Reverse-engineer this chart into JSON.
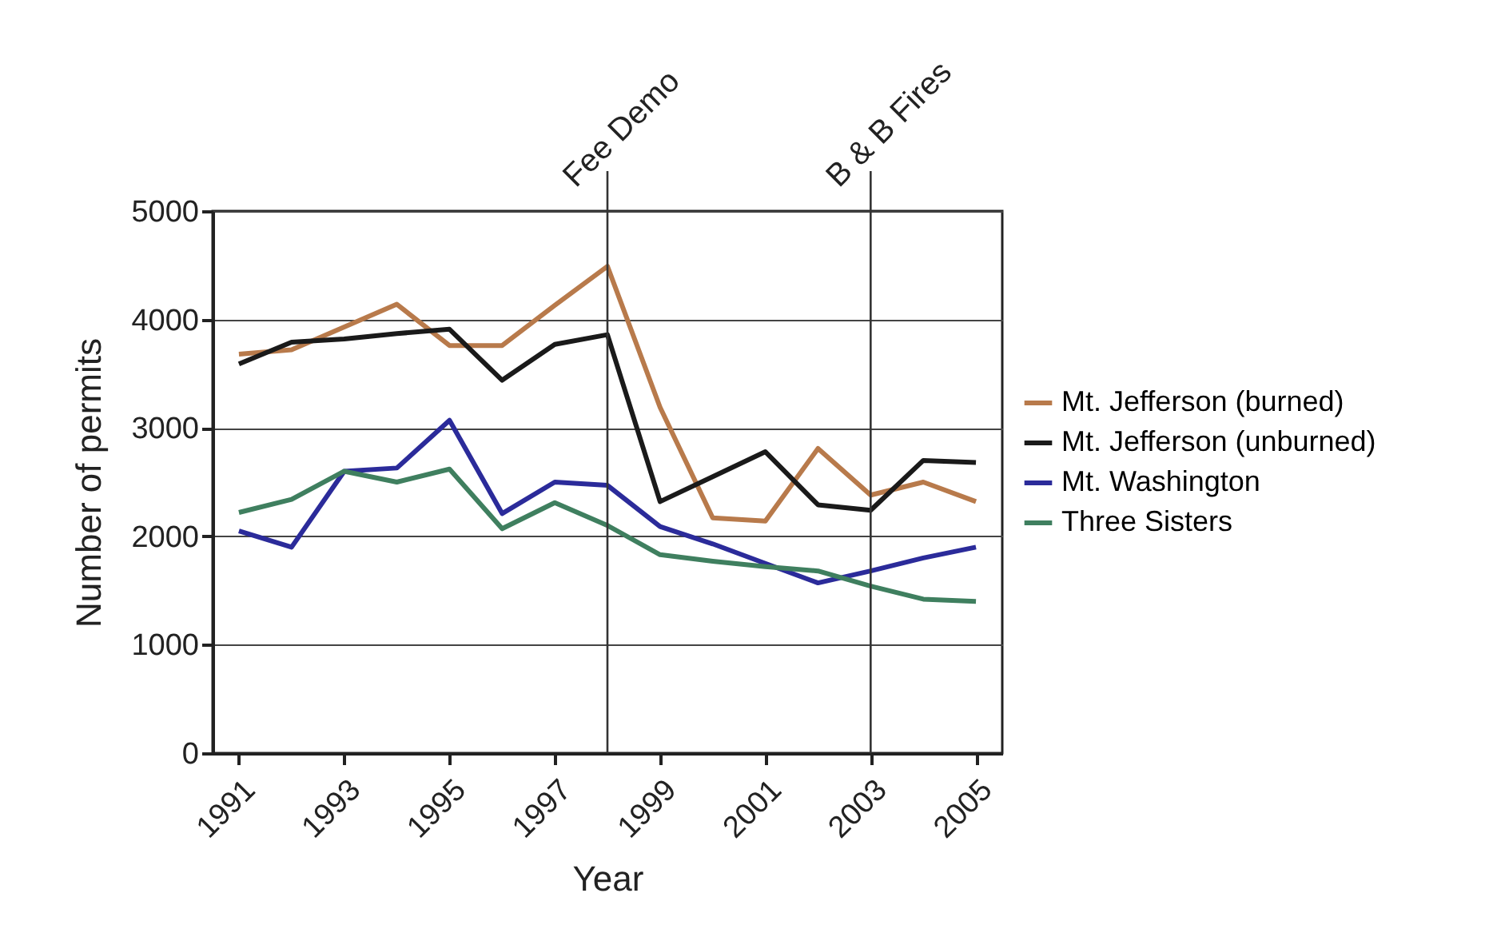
{
  "chart_data": {
    "type": "line",
    "xlabel": "Year",
    "ylabel": "Number of permits",
    "x": [
      1991,
      1992,
      1993,
      1994,
      1995,
      1996,
      1997,
      1998,
      1999,
      2000,
      2001,
      2002,
      2003,
      2004,
      2005
    ],
    "xlim": [
      1990.5,
      2005.5
    ],
    "xticks": [
      1991,
      1993,
      1995,
      1997,
      1999,
      2001,
      2003,
      2005
    ],
    "ylim": [
      0,
      5000
    ],
    "yticks": [
      0,
      1000,
      2000,
      3000,
      4000,
      5000
    ],
    "grid": "y",
    "legend": "right",
    "series": [
      {
        "name": "Mt. Jefferson (burned)",
        "color": "#b87a4b",
        "values": [
          3680,
          3720,
          3930,
          4140,
          3760,
          3760,
          4130,
          4490,
          3190,
          2170,
          2140,
          2810,
          2380,
          2500,
          2320
        ]
      },
      {
        "name": "Mt. Jefferson (unburned)",
        "color": "#1a1a1a",
        "values": [
          3590,
          3790,
          3820,
          3870,
          3910,
          3440,
          3770,
          3860,
          2320,
          2550,
          2780,
          2290,
          2240,
          2700,
          2680
        ]
      },
      {
        "name": "Mt. Washington",
        "color": "#2b2b9a",
        "values": [
          2050,
          1900,
          2600,
          2630,
          3070,
          2210,
          2500,
          2470,
          2090,
          1930,
          1750,
          1570,
          1680,
          1800,
          1900
        ]
      },
      {
        "name": "Three Sisters",
        "color": "#3f7f5f",
        "values": [
          2220,
          2340,
          2600,
          2500,
          2620,
          2070,
          2310,
          2100,
          1830,
          1770,
          1720,
          1680,
          1540,
          1420,
          1400
        ]
      }
    ],
    "ref_lines": [
      {
        "axis": "x",
        "value": 1998,
        "label": "Fee Demo"
      },
      {
        "axis": "x",
        "value": 2003,
        "label": "B & B Fires"
      }
    ]
  }
}
